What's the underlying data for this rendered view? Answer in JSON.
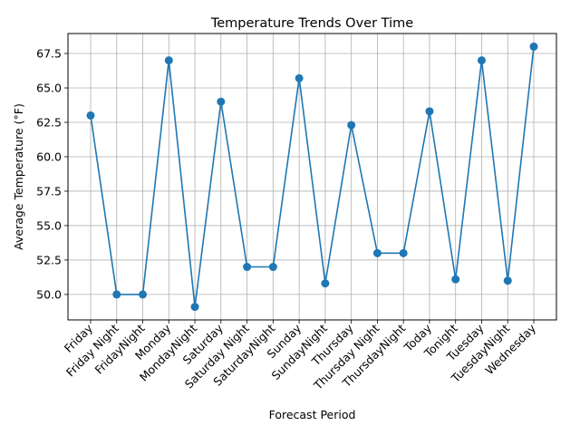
{
  "chart_data": {
    "type": "line",
    "title": "Temperature Trends Over Time",
    "xlabel": "Forecast Period",
    "ylabel": "Average Temperature (°F)",
    "categories": [
      "Friday",
      "Friday Night",
      "FridayNight",
      "Monday",
      "MondayNight",
      "Saturday",
      "Saturday Night",
      "SaturdayNight",
      "Sunday",
      "SundayNight",
      "Thursday",
      "Thursday Night",
      "ThursdayNight",
      "Today",
      "Tonight",
      "Tuesday",
      "TuesdayNight",
      "Wednesday"
    ],
    "values": [
      63.0,
      50.0,
      50.0,
      67.0,
      49.1,
      64.0,
      52.0,
      52.0,
      65.7,
      50.8,
      62.3,
      53.0,
      53.0,
      63.3,
      51.1,
      67.0,
      51.0,
      68.0
    ],
    "ylim": [
      48.15,
      68.95
    ],
    "yticks": [
      "50.0",
      "52.5",
      "55.0",
      "57.5",
      "60.0",
      "62.5",
      "65.0",
      "67.5"
    ],
    "grid": true,
    "line_color": "#1f77b4",
    "marker": "circle"
  }
}
